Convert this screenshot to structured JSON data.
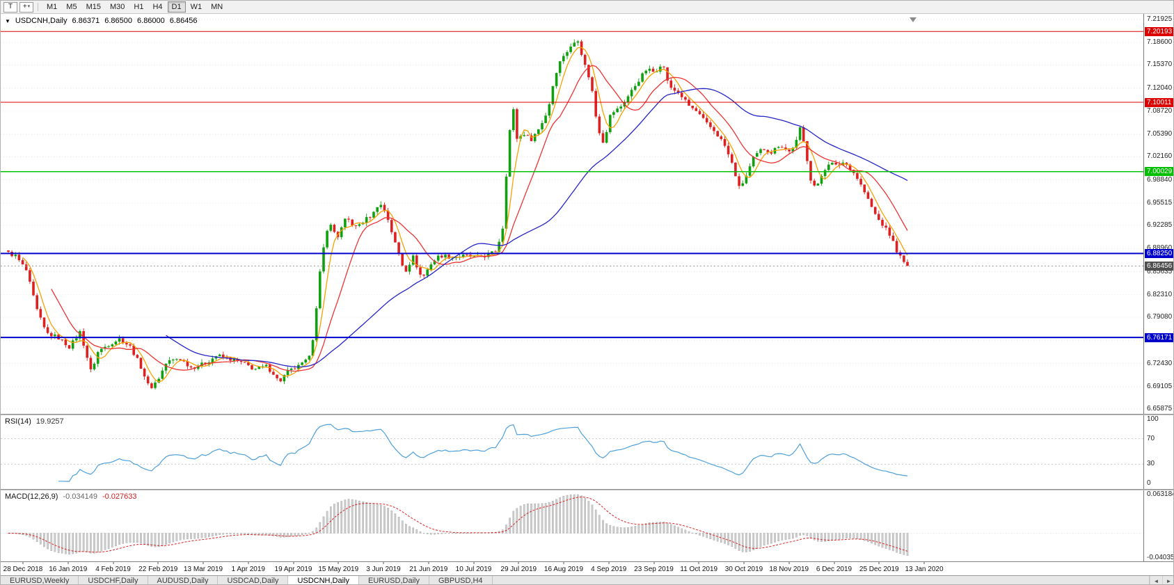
{
  "toolbar": {
    "tool_buttons": [
      {
        "name": "templates-button",
        "icon": "letter-t-icon",
        "glyph": "T",
        "has_dropdown": false
      },
      {
        "name": "crosshair-tool-button",
        "icon": "crosshair-icon",
        "glyph": "+",
        "has_dropdown": true
      }
    ],
    "dropdown_glyph": "▾",
    "timeframes": [
      "M1",
      "M5",
      "M15",
      "M30",
      "H1",
      "H4",
      "D1",
      "W1",
      "MN"
    ],
    "active_timeframe": "D1"
  },
  "chart": {
    "symbol_line": {
      "arrow_icon": "▼",
      "symbol": "USDCNH,Daily",
      "open": "6.86371",
      "high": "6.86500",
      "low": "6.86000",
      "close": "6.86456"
    },
    "price_axis_ticks": [
      7.21925,
      7.186,
      7.1537,
      7.1204,
      7.0872,
      7.0539,
      7.0216,
      6.9884,
      6.95515,
      6.92285,
      6.8896,
      6.85635,
      6.8231,
      6.7908,
      6.75755,
      6.7243,
      6.69105,
      6.65875
    ],
    "hlines": [
      {
        "price": 7.20193,
        "label": "7.20193",
        "color": "#dd0000",
        "width": 1
      },
      {
        "price": 7.10011,
        "label": "7.10011",
        "color": "#dd0000",
        "width": 1
      },
      {
        "price": 7.00029,
        "label": "7.00029",
        "color": "#00c000",
        "width": 1.5
      },
      {
        "price": 6.8825,
        "label": "6.88250",
        "color": "#0000cc",
        "width": 2
      },
      {
        "price": 6.76171,
        "label": "6.76171",
        "color": "#0000cc",
        "width": 2
      }
    ],
    "current_price": {
      "value": 6.86456,
      "label": "6.86456",
      "color": "#4f4f4f"
    }
  },
  "chart_data": {
    "type": "candlestick",
    "symbol": "USDCNH",
    "timeframe": "Daily",
    "title": "USDCNH,Daily",
    "candles_count": 252,
    "ylim": [
      6.65875,
      7.21925
    ],
    "last_ohlc": {
      "open": 6.86371,
      "high": 6.865,
      "low": 6.86,
      "close": 6.86456
    },
    "horizontal_levels": [
      7.20193,
      7.10011,
      7.00029,
      6.8825,
      6.76171
    ],
    "moving_averages": [
      {
        "period": 5,
        "color": "#f8a000"
      },
      {
        "period": 13,
        "color": "#ee3333"
      },
      {
        "period": 45,
        "color": "#2424c8"
      }
    ],
    "price_keypoints": [
      [
        0.0,
        6.883
      ],
      [
        0.008,
        6.879
      ],
      [
        0.02,
        6.858
      ],
      [
        0.032,
        6.8
      ],
      [
        0.042,
        6.768
      ],
      [
        0.055,
        6.762
      ],
      [
        0.068,
        6.748
      ],
      [
        0.08,
        6.77
      ],
      [
        0.092,
        6.712
      ],
      [
        0.1,
        6.742
      ],
      [
        0.112,
        6.752
      ],
      [
        0.124,
        6.76
      ],
      [
        0.136,
        6.748
      ],
      [
        0.148,
        6.718
      ],
      [
        0.157,
        6.688
      ],
      [
        0.166,
        6.7
      ],
      [
        0.176,
        6.726
      ],
      [
        0.19,
        6.732
      ],
      [
        0.204,
        6.718
      ],
      [
        0.218,
        6.724
      ],
      [
        0.232,
        6.736
      ],
      [
        0.248,
        6.73
      ],
      [
        0.262,
        6.724
      ],
      [
        0.274,
        6.716
      ],
      [
        0.287,
        6.72
      ],
      [
        0.295,
        6.71
      ],
      [
        0.301,
        6.697
      ],
      [
        0.31,
        6.712
      ],
      [
        0.322,
        6.719
      ],
      [
        0.333,
        6.729
      ],
      [
        0.34,
        6.768
      ],
      [
        0.348,
        6.872
      ],
      [
        0.356,
        6.928
      ],
      [
        0.366,
        6.906
      ],
      [
        0.376,
        6.934
      ],
      [
        0.386,
        6.92
      ],
      [
        0.396,
        6.93
      ],
      [
        0.406,
        6.94
      ],
      [
        0.412,
        6.956
      ],
      [
        0.42,
        6.942
      ],
      [
        0.43,
        6.898
      ],
      [
        0.441,
        6.856
      ],
      [
        0.45,
        6.878
      ],
      [
        0.46,
        6.846
      ],
      [
        0.47,
        6.868
      ],
      [
        0.48,
        6.88
      ],
      [
        0.494,
        6.877
      ],
      [
        0.508,
        6.879
      ],
      [
        0.522,
        6.877
      ],
      [
        0.535,
        6.881
      ],
      [
        0.543,
        6.887
      ],
      [
        0.55,
        6.921
      ],
      [
        0.556,
        7.04
      ],
      [
        0.561,
        7.096
      ],
      [
        0.566,
        7.046
      ],
      [
        0.573,
        7.056
      ],
      [
        0.581,
        7.046
      ],
      [
        0.59,
        7.062
      ],
      [
        0.6,
        7.088
      ],
      [
        0.608,
        7.14
      ],
      [
        0.616,
        7.166
      ],
      [
        0.625,
        7.178
      ],
      [
        0.633,
        7.193
      ],
      [
        0.64,
        7.158
      ],
      [
        0.648,
        7.128
      ],
      [
        0.655,
        7.066
      ],
      [
        0.662,
        7.042
      ],
      [
        0.67,
        7.084
      ],
      [
        0.68,
        7.092
      ],
      [
        0.69,
        7.11
      ],
      [
        0.7,
        7.13
      ],
      [
        0.71,
        7.148
      ],
      [
        0.719,
        7.143
      ],
      [
        0.727,
        7.158
      ],
      [
        0.736,
        7.12
      ],
      [
        0.746,
        7.114
      ],
      [
        0.756,
        7.096
      ],
      [
        0.766,
        7.086
      ],
      [
        0.776,
        7.07
      ],
      [
        0.786,
        7.058
      ],
      [
        0.796,
        7.04
      ],
      [
        0.806,
        7.008
      ],
      [
        0.813,
        6.976
      ],
      [
        0.82,
        6.992
      ],
      [
        0.829,
        7.02
      ],
      [
        0.839,
        7.034
      ],
      [
        0.849,
        7.028
      ],
      [
        0.858,
        7.04
      ],
      [
        0.868,
        7.028
      ],
      [
        0.876,
        7.042
      ],
      [
        0.881,
        7.064
      ],
      [
        0.887,
        7.028
      ],
      [
        0.893,
        6.986
      ],
      [
        0.899,
        6.976
      ],
      [
        0.906,
        7.0
      ],
      [
        0.913,
        7.014
      ],
      [
        0.921,
        7.008
      ],
      [
        0.929,
        7.014
      ],
      [
        0.936,
        7.006
      ],
      [
        0.943,
        6.994
      ],
      [
        0.951,
        6.974
      ],
      [
        0.959,
        6.952
      ],
      [
        0.966,
        6.934
      ],
      [
        0.973,
        6.923
      ],
      [
        0.981,
        6.908
      ],
      [
        0.989,
        6.884
      ],
      [
        0.996,
        6.869
      ],
      [
        1.0,
        6.8646
      ]
    ]
  },
  "rsi": {
    "name": "RSI(14)",
    "period": 14,
    "value_text": "19.9257",
    "value": 19.9257,
    "axis_values": [
      100,
      70,
      30,
      0
    ],
    "levels": [
      70,
      30
    ],
    "color": "#4da0dc"
  },
  "macd": {
    "name": "MACD(12,26,9)",
    "fast": 12,
    "slow": 26,
    "signal": 9,
    "main_text": "-0.034149",
    "signal_text": "-0.027633",
    "main_value": -0.034149,
    "signal_value": -0.027633,
    "axis_top_text": "0.063184",
    "axis_bottom_text": "-0.040353",
    "axis_top_value": 0.063184,
    "axis_bottom_value": -0.040353,
    "hist_color": "#cfcfcf",
    "signal_color": "#dd2222"
  },
  "date_axis": [
    "28 Dec 2018",
    "16 Jan 2019",
    "4 Feb 2019",
    "22 Feb 2019",
    "13 Mar 2019",
    "1 Apr 2019",
    "19 Apr 2019",
    "15 May 2019",
    "3 Jun 2019",
    "21 Jun 2019",
    "10 Jul 2019",
    "29 Jul 2019",
    "16 Aug 2019",
    "4 Sep 2019",
    "23 Sep 2019",
    "11 Oct 2019",
    "30 Oct 2019",
    "18 Nov 2019",
    "6 Dec 2019",
    "25 Dec 2019",
    "13 Jan 2020"
  ],
  "tabs": {
    "items": [
      "EURUSD,Weekly",
      "USDCHF,Daily",
      "AUDUSD,Daily",
      "USDCAD,Daily",
      "USDCNH,Daily",
      "EURUSD,Daily",
      "GBPUSD,H4"
    ],
    "active_index": 4,
    "scroll_left": "◄",
    "scroll_right": "►"
  }
}
